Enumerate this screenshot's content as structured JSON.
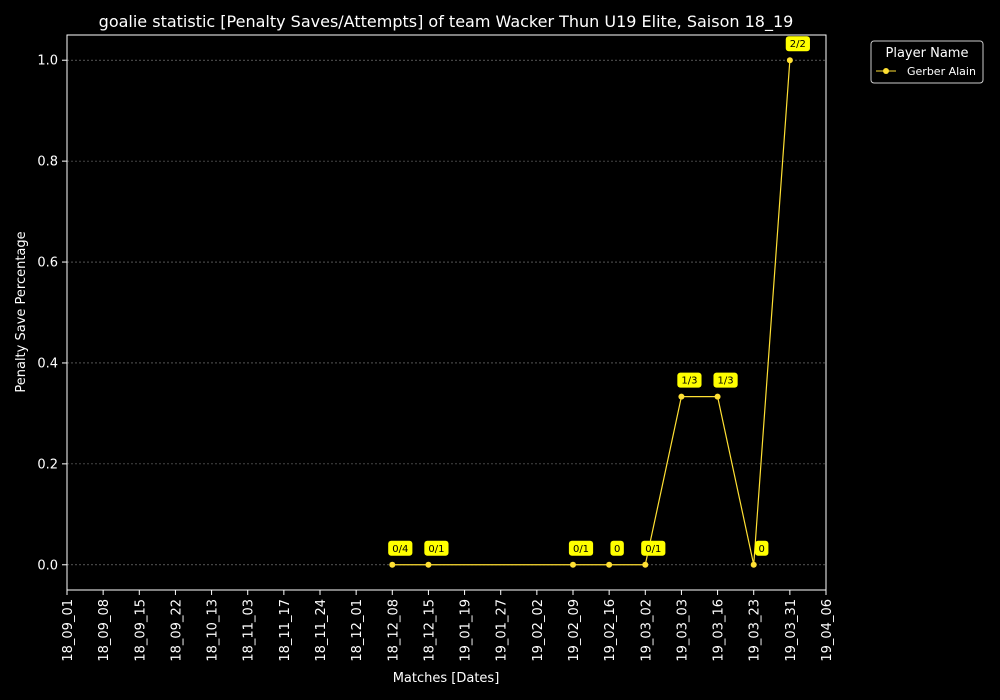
{
  "colors": {
    "background": "#000000",
    "series": "#ffe033",
    "annotation_bg": "#ffff00",
    "grid": "#888888",
    "text": "#ffffff"
  },
  "chart_data": {
    "type": "line",
    "title": "goalie statistic [Penalty Saves/Attempts] of team Wacker Thun U19 Elite, Saison 18_19",
    "xlabel": "Matches [Dates]",
    "ylabel": "Penalty Save Percentage",
    "x_ticks": [
      "18_09_01",
      "18_09_08",
      "18_09_15",
      "18_09_22",
      "18_10_13",
      "18_11_03",
      "18_11_17",
      "18_11_24",
      "18_12_01",
      "18_12_08",
      "18_12_15",
      "19_01_19",
      "19_01_27",
      "19_02_02",
      "19_02_09",
      "19_02_16",
      "19_03_02",
      "19_03_03",
      "19_03_16",
      "19_03_23",
      "19_03_31",
      "19_04_06"
    ],
    "y_ticks": [
      0.0,
      0.2,
      0.4,
      0.6,
      0.8,
      1.0
    ],
    "y_tick_labels": [
      "0.0",
      "0.2",
      "0.4",
      "0.6",
      "0.8",
      "1.0"
    ],
    "ylim": [
      -0.05,
      1.05
    ],
    "grid": "horizontal dotted",
    "legend": {
      "title": "Player Name",
      "placement": "top-right outside"
    },
    "series": [
      {
        "name": "Gerber Alain",
        "points": [
          {
            "x": "18_12_08",
            "y": 0.0,
            "label": "0/4"
          },
          {
            "x": "18_12_15",
            "y": 0.0,
            "label": "0/1"
          },
          {
            "x": "19_02_09",
            "y": 0.0,
            "label": "0/1"
          },
          {
            "x": "19_02_16",
            "y": 0.0,
            "label": "0"
          },
          {
            "x": "19_03_02",
            "y": 0.0,
            "label": "0/1"
          },
          {
            "x": "19_03_03",
            "y": 0.3333,
            "label": "1/3"
          },
          {
            "x": "19_03_16",
            "y": 0.3333,
            "label": "1/3"
          },
          {
            "x": "19_03_23",
            "y": 0.0,
            "label": "0"
          },
          {
            "x": "19_03_31",
            "y": 1.0,
            "label": "2/2"
          }
        ]
      }
    ]
  }
}
